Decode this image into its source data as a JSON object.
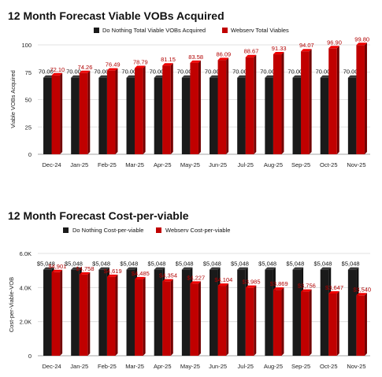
{
  "chart_data": [
    {
      "type": "bar",
      "title": "12 Month Forecast Viable VOBs Acquired",
      "xlabel": "",
      "ylabel": "Viable VOBs Acquired",
      "ylim": [
        0,
        100
      ],
      "yticks": [
        "0",
        "25",
        "50",
        "75",
        "100"
      ],
      "grid": true,
      "legend_placement": "top",
      "categories": [
        "Dec-24",
        "Jan-25",
        "Feb-25",
        "Mar-25",
        "Apr-25",
        "May-25",
        "Jun-25",
        "Jul-25",
        "Aug-25",
        "Sep-25",
        "Oct-25",
        "Nov-25"
      ],
      "series": [
        {
          "name": "Do Nothing Total Viable VOBs Acquired",
          "color": "#1a1a1a",
          "values": [
            70,
            70,
            70,
            70,
            70,
            70,
            70,
            70,
            70,
            70,
            70,
            70
          ],
          "labels": [
            "70.00",
            "70.00",
            "70.00",
            "70.00",
            "70.00",
            "70.00",
            "70.00",
            "70.00",
            "70.00",
            "70.00",
            "70.00",
            "70.00"
          ]
        },
        {
          "name": "Webserv Total Viables",
          "color": "#c00000",
          "values": [
            72.1,
            74.26,
            76.49,
            78.79,
            81.15,
            83.58,
            86.09,
            88.67,
            91.33,
            94.07,
            96.9,
            99.8
          ],
          "labels": [
            "72.10",
            "74.26",
            "76.49",
            "78.79",
            "81.15",
            "83.58",
            "86.09",
            "88.67",
            "91.33",
            "94.07",
            "96.90",
            "99.80"
          ]
        }
      ]
    },
    {
      "type": "bar",
      "title": "12 Month Forecast Cost-per-viable",
      "xlabel": "",
      "ylabel": "Cost-per-Viable-VOB",
      "ylim": [
        0,
        6000
      ],
      "yticks": [
        "0",
        "2.0K",
        "4.0K",
        "6.0K"
      ],
      "grid": true,
      "legend_placement": "top",
      "categories": [
        "Dec-24",
        "Jan-25",
        "Feb-25",
        "Mar-25",
        "Apr-25",
        "May-25",
        "Jun-25",
        "Jul-25",
        "Aug-25",
        "Sep-25",
        "Oct-25",
        "Nov-25"
      ],
      "series": [
        {
          "name": "Do Nothing Cost-per-viable",
          "color": "#1a1a1a",
          "values": [
            5048,
            5048,
            5048,
            5048,
            5048,
            5048,
            5048,
            5048,
            5048,
            5048,
            5048,
            5048
          ],
          "labels": [
            "$5,048",
            "$5,048",
            "$5,048",
            "$5,048",
            "$5,048",
            "$5,048",
            "$5,048",
            "$5,048",
            "$5,048",
            "$5,048",
            "$5,048",
            "$5,048"
          ]
        },
        {
          "name": "Webserv Cost-per-viable",
          "color": "#c00000",
          "values": [
            4901,
            4758,
            4619,
            4485,
            4354,
            4227,
            4104,
            3985,
            3869,
            3756,
            3647,
            3540
          ],
          "labels": [
            "$4,901",
            "$4,758",
            "$4,619",
            "$4,485",
            "$4,354",
            "$4,227",
            "$4,104",
            "$3,985",
            "$3,869",
            "$3,756",
            "$3,647",
            "$3,540"
          ]
        }
      ]
    }
  ]
}
